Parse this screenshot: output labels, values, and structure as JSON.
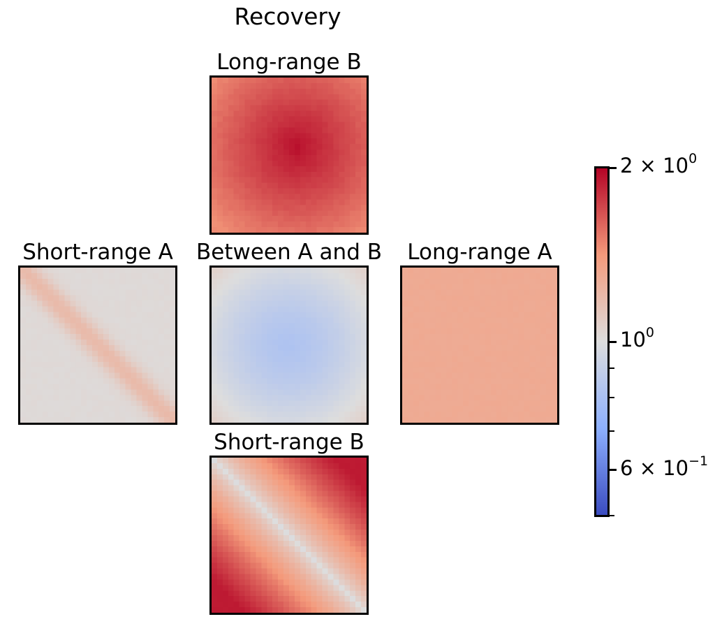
{
  "chart_data": {
    "type": "heatmap",
    "title": "Recovery",
    "colormap": "coolwarm",
    "color_scale": "log",
    "clim": [
      0.5,
      2.0
    ],
    "grid_resolution": 28,
    "panels": [
      {
        "id": "long_range_b",
        "title": "Long-range B",
        "pattern": "center_peak",
        "edge_value": 1.45,
        "center_value": 1.95
      },
      {
        "id": "short_range_a",
        "title": "Short-range A",
        "pattern": "diagonal_band",
        "background_value": 1.02,
        "diagonal_value": 1.2
      },
      {
        "id": "between_a_b",
        "title": "Between A and B",
        "pattern": "center_dip",
        "edge_value": 1.08,
        "center_value": 0.82
      },
      {
        "id": "long_range_a",
        "title": "Long-range A",
        "pattern": "uniform",
        "value": 1.3
      },
      {
        "id": "short_range_b",
        "title": "Short-range B",
        "pattern": "anti_diagonal",
        "diagonal_value": 1.0,
        "corner_value": 1.9
      }
    ],
    "colorbar": {
      "major_ticks": [
        {
          "value": 2.0,
          "base": "2 × 10",
          "exp": "0"
        },
        {
          "value": 1.0,
          "base": "10",
          "exp": "0"
        },
        {
          "value": 0.6,
          "base": "6 × 10",
          "exp": "−1"
        }
      ],
      "minor_ticks": [
        0.9,
        0.8,
        0.7
      ]
    }
  }
}
